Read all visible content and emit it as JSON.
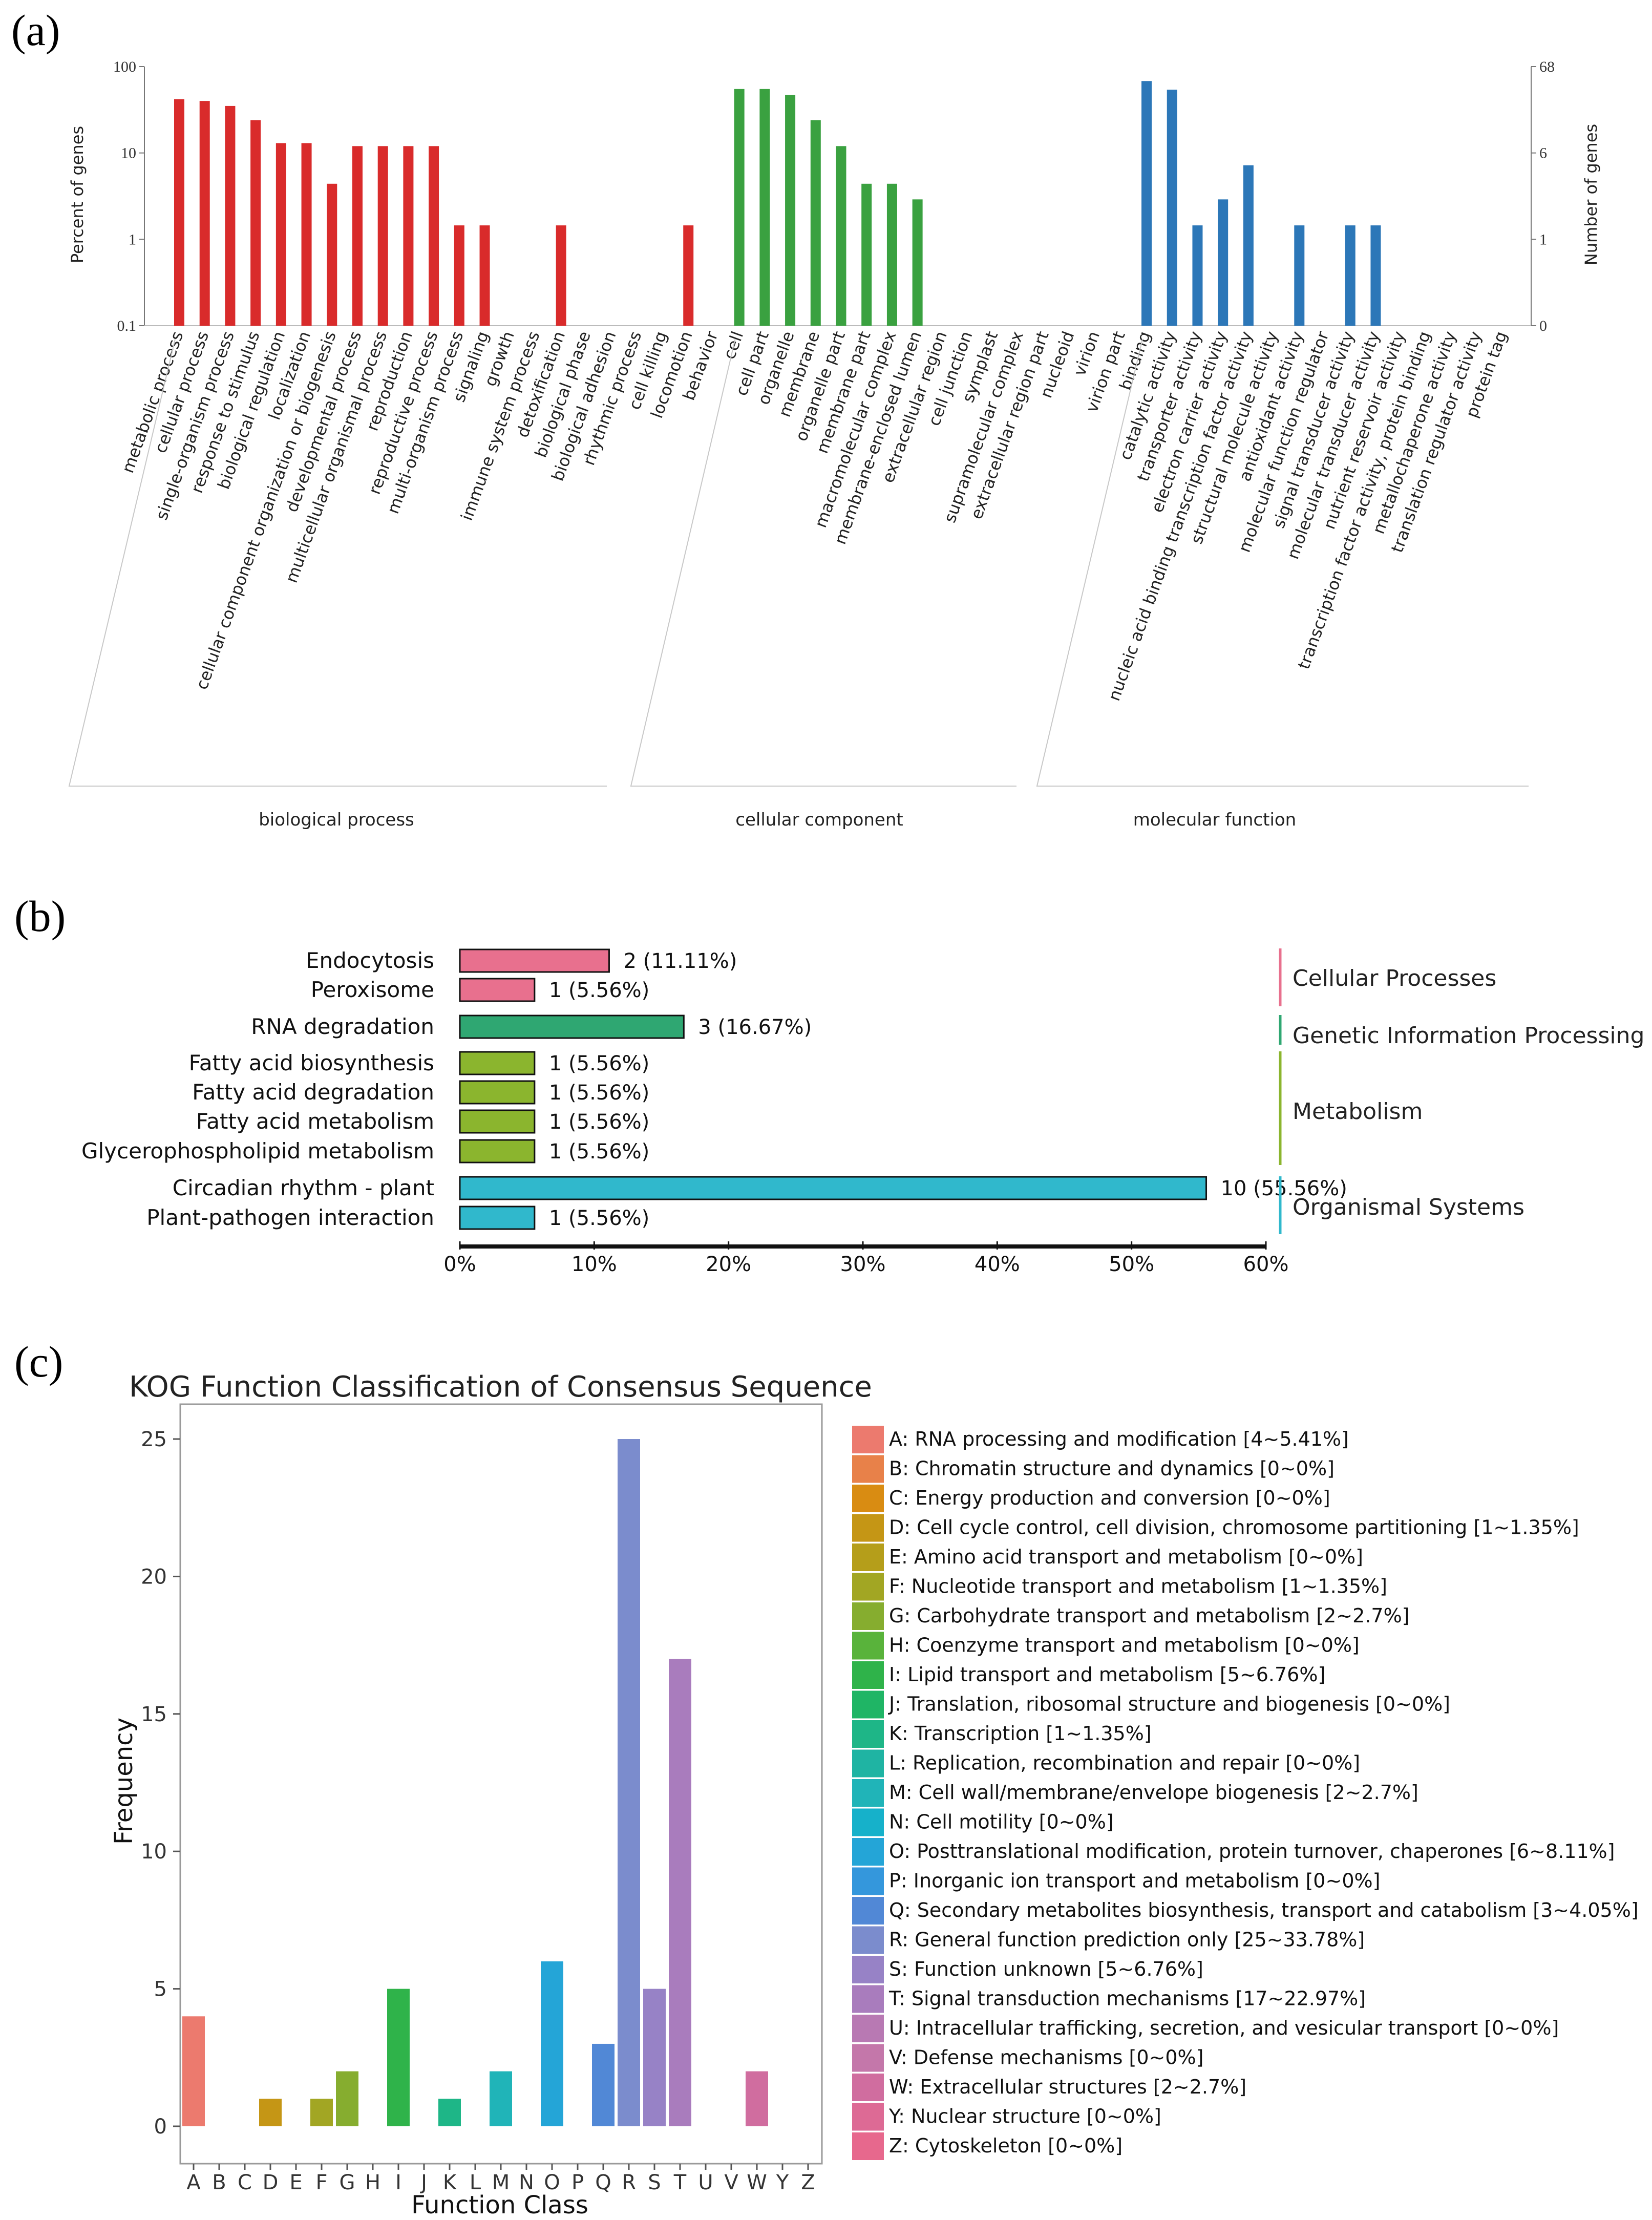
{
  "panel_labels": {
    "a": "(a)",
    "b": "(b)",
    "c": "(c)"
  },
  "chart_data": [
    {
      "type": "bar",
      "id": "go",
      "title": "",
      "ylabel": "Percent of genes",
      "y2label": "Number of genes",
      "yscale": "log",
      "ylim": [
        0.1,
        100
      ],
      "yticks": [
        "100",
        "10",
        "1",
        "0.1"
      ],
      "y2ticks": [
        "68",
        "6",
        "1",
        "0"
      ],
      "groups": [
        {
          "name": "biological process",
          "color": "#d92b2b",
          "categories": [
            "metabolic process",
            "cellular process",
            "single-organism process",
            "response to stimulus",
            "biological regulation",
            "localization",
            "cellular component organization or biogenesis",
            "developmental process",
            "multicellular organismal process",
            "reproduction",
            "reproductive process",
            "multi-organism process",
            "signaling",
            "growth",
            "immune system process",
            "detoxification",
            "biological phase",
            "biological adhesion",
            "rhythmic process",
            "cell killing",
            "locomotion",
            "behavior"
          ],
          "values": [
            42,
            40,
            35,
            24,
            13,
            13,
            4.4,
            12,
            12,
            12,
            12,
            1.45,
            1.45,
            0,
            0,
            1.45,
            0,
            0,
            0,
            0,
            1.45,
            0
          ]
        },
        {
          "name": "cellular component",
          "color": "#3aa140",
          "categories": [
            "cell",
            "cell part",
            "organelle",
            "membrane",
            "organelle part",
            "membrane part",
            "macromolecular complex",
            "membrane-enclosed lumen",
            "extracellular region",
            "cell junction",
            "symplast",
            "supramolecular complex",
            "extracellular region part",
            "nucleoid",
            "virion",
            "virion part"
          ],
          "values": [
            55,
            55,
            47,
            24,
            12,
            4.4,
            4.4,
            2.9,
            0,
            0,
            0,
            0,
            0,
            0,
            0,
            0
          ]
        },
        {
          "name": "molecular function",
          "color": "#2c77b8",
          "categories": [
            "binding",
            "catalytic activity",
            "transporter activity",
            "electron carrier activity",
            "nucleic acid binding transcription factor activity",
            "structural molecule activity",
            "antioxidant activity",
            "molecular function regulator",
            "signal transducer activity",
            "molecular transducer activity",
            "nutrient reservoir activity",
            "transcription factor activity, protein binding",
            "metallochaperone activity",
            "translation regulator activity",
            "protein tag"
          ],
          "values": [
            68,
            54,
            1.45,
            2.9,
            7.2,
            0,
            1.45,
            0,
            1.45,
            1.45,
            0,
            0,
            0,
            0,
            0
          ]
        }
      ]
    },
    {
      "type": "bar",
      "orientation": "horizontal",
      "id": "kegg",
      "xlim": [
        0,
        60
      ],
      "xticks": [
        "0%",
        "10%",
        "20%",
        "30%",
        "40%",
        "50%",
        "60%"
      ],
      "groups": [
        {
          "name": "Cellular Processes",
          "color": "#e8708e",
          "items": [
            {
              "label": "Endocytosis",
              "value": 11.11,
              "text": "2 (11.11%)"
            },
            {
              "label": "Peroxisome",
              "value": 5.56,
              "text": "1 (5.56%)"
            }
          ]
        },
        {
          "name": "Genetic Information Processing",
          "color": "#2fa772",
          "items": [
            {
              "label": "RNA degradation",
              "value": 16.67,
              "text": "3 (16.67%)"
            }
          ]
        },
        {
          "name": "Metabolism",
          "color": "#8bb52e",
          "items": [
            {
              "label": "Fatty acid biosynthesis",
              "value": 5.56,
              "text": "1 (5.56%)"
            },
            {
              "label": "Fatty acid degradation",
              "value": 5.56,
              "text": "1 (5.56%)"
            },
            {
              "label": "Fatty acid metabolism",
              "value": 5.56,
              "text": "1 (5.56%)"
            },
            {
              "label": "Glycerophospholipid metabolism",
              "value": 5.56,
              "text": "1 (5.56%)"
            }
          ]
        },
        {
          "name": "Organismal Systems",
          "color": "#30b8cc",
          "items": [
            {
              "label": "Circadian rhythm - plant",
              "value": 55.56,
              "text": "10 (55.56%)"
            },
            {
              "label": "Plant-pathogen interaction",
              "value": 5.56,
              "text": "1 (5.56%)"
            }
          ]
        }
      ]
    },
    {
      "type": "bar",
      "id": "kog",
      "title": "KOG Function Classification of Consensus Sequence",
      "xlabel": "Function Class",
      "ylabel": "Frequency",
      "ylim": [
        0,
        27
      ],
      "yticks": [
        0,
        5,
        10,
        15,
        20,
        25
      ],
      "categories": [
        "A",
        "B",
        "C",
        "D",
        "E",
        "F",
        "G",
        "H",
        "I",
        "J",
        "K",
        "L",
        "M",
        "N",
        "O",
        "P",
        "Q",
        "R",
        "S",
        "T",
        "U",
        "V",
        "W",
        "Y",
        "Z"
      ],
      "values": [
        4,
        0,
        0,
        1,
        0,
        1,
        2,
        0,
        5,
        0,
        1,
        0,
        2,
        0,
        6,
        0,
        3,
        25,
        5,
        17,
        0,
        0,
        2,
        0,
        0
      ],
      "colors": [
        "#ec7a6e",
        "#e88149",
        "#d98c12",
        "#c59615",
        "#b59e1a",
        "#a2a623",
        "#86ad2f",
        "#59b33b",
        "#2fb34a",
        "#1fb565",
        "#1eb687",
        "#1fb4a3",
        "#20b4b8",
        "#16b1ca",
        "#24a5d7",
        "#3497dc",
        "#5188d6",
        "#7b8ccd",
        "#9782c6",
        "#a97cbd",
        "#b879b3",
        "#c477aa",
        "#d06d9f",
        "#dd6a95",
        "#e7688d"
      ],
      "legend": [
        "A: RNA processing and modification [4~5.41%]",
        "B: Chromatin structure and dynamics [0~0%]",
        "C: Energy production and conversion [0~0%]",
        "D: Cell cycle control, cell division, chromosome partitioning [1~1.35%]",
        "E: Amino acid transport and metabolism [0~0%]",
        "F: Nucleotide transport and metabolism [1~1.35%]",
        "G: Carbohydrate transport and metabolism [2~2.7%]",
        "H: Coenzyme transport and metabolism [0~0%]",
        "I: Lipid transport and metabolism [5~6.76%]",
        "J: Translation, ribosomal structure and biogenesis [0~0%]",
        "K: Transcription [1~1.35%]",
        "L: Replication, recombination and repair [0~0%]",
        "M: Cell wall/membrane/envelope biogenesis [2~2.7%]",
        "N: Cell motility [0~0%]",
        "O: Posttranslational modification, protein turnover, chaperones [6~8.11%]",
        "P: Inorganic ion transport and metabolism [0~0%]",
        "Q: Secondary metabolites biosynthesis, transport and catabolism [3~4.05%]",
        "R: General function prediction only [25~33.78%]",
        "S: Function unknown [5~6.76%]",
        "T: Signal transduction mechanisms [17~22.97%]",
        "U: Intracellular trafficking, secretion, and vesicular transport [0~0%]",
        "V: Defense mechanisms [0~0%]",
        "W: Extracellular structures [2~2.7%]",
        "Y: Nuclear structure [0~0%]",
        "Z: Cytoskeleton [0~0%]"
      ]
    }
  ]
}
